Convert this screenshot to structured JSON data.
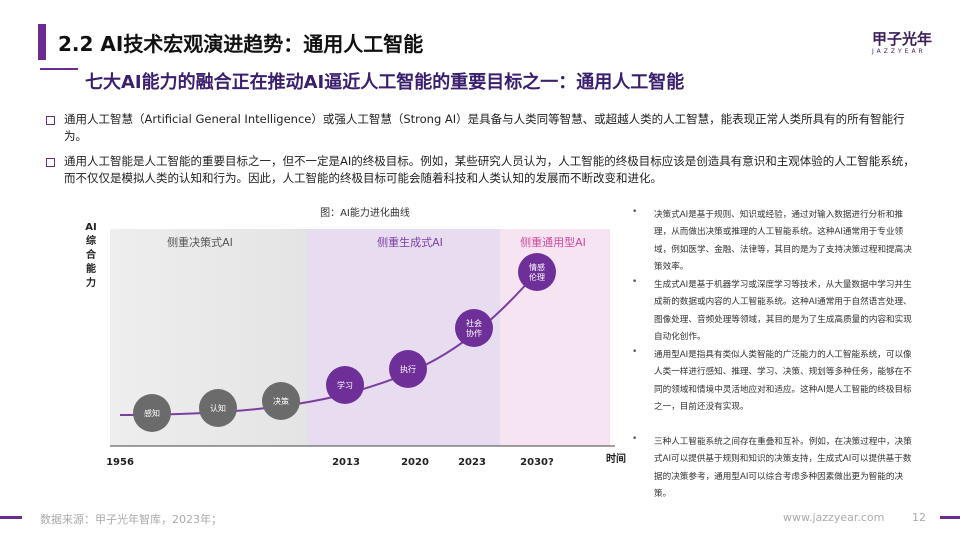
{
  "header": {
    "title": "2.2 AI技术宏观演进趋势：通用人工智能",
    "logo": "甲子光年",
    "logo_sub": "JAZZYEAR"
  },
  "subtitle": "七大AI能力的融合正在推动AI逼近人工智能的重要目标之一：通用人工智能",
  "bullets": [
    "通用人工智慧（Artificial General Intelligence）或强人工智慧（Strong AI）是具备与人类同等智慧、或超越人类的人工智慧，能表现正常人类所具有的所有智能行为。",
    "通用人工智能是人工智能的重要目标之一，但不一定是AI的终极目标。例如，某些研究人员认为，人工智能的终极目标应该是创造具有意识和主观体验的人工智能系统，而不仅仅是模拟人类的认知和行为。因此，人工智能的终极目标可能会随着科技和人类认知的发展而不断改变和进化。"
  ],
  "figure": {
    "title": "图：AI能力进化曲线",
    "y_label": [
      "AI",
      "综",
      "合",
      "能",
      "力"
    ],
    "x_label": "时间",
    "zones": [
      "侧重决策式AI",
      "侧重生成式AI",
      "侧重通用型AI"
    ],
    "nodes": [
      "感知",
      "认知",
      "决策",
      "学习",
      "执行",
      "社会协作",
      "情感伦理"
    ],
    "years": [
      "1956",
      "2013",
      "2020",
      "2023",
      "2030?"
    ]
  },
  "notes": [
    "决策式AI是基于规则、知识或经验，通过对输入数据进行分析和推理，从而做出决策或推理的人工智能系统。这种AI通常用于专业领域，例如医学、金融、法律等，其目的是为了支持决策过程和提高决策效率。",
    "生成式AI是基于机器学习或深度学习等技术，从大量数据中学习并生成新的数据或内容的人工智能系统。这种AI通常用于自然语言处理、图像处理、音频处理等领域，其目的是为了生成高质量的内容和实现自动化创作。",
    "通用型AI是指具有类似人类智能的广泛能力的人工智能系统，可以像人类一样进行感知、推理、学习、决策、规划等多种任务，能够在不同的领域和情境中灵活地应对和适应。这种AI是人工智能的终极目标之一，目前还没有实现。",
    "三种人工智能系统之间存在重叠和互补。例如，在决策过程中，决策式AI可以提供基于规则和知识的决策支持，生成式AI可以提供基于数据的决策参考，通用型AI可以综合考虑多种因素做出更为智能的决策。"
  ],
  "footer": {
    "source": "数据来源：甲子光年智库，2023年；",
    "url": "www.jazzyear.com",
    "page": "12"
  }
}
